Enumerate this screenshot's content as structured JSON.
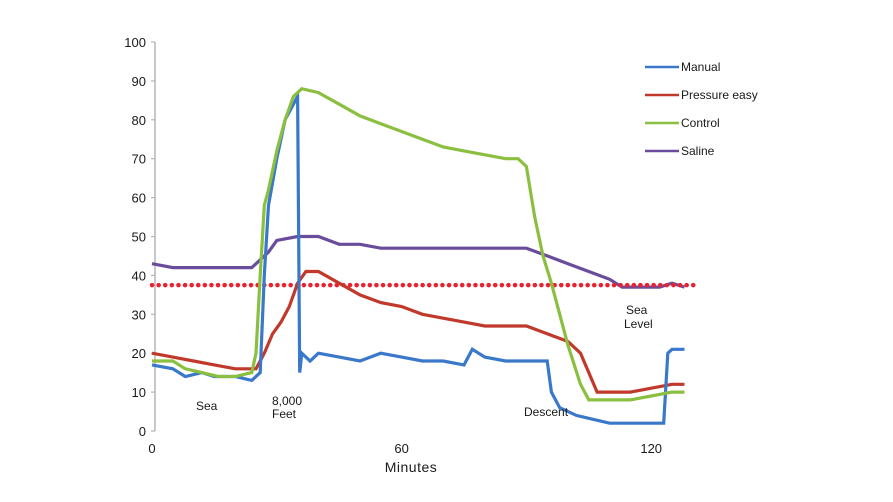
{
  "chart_data": {
    "type": "line",
    "title": "",
    "xlabel": "Minutes",
    "ylabel": "",
    "xlim": [
      0,
      130
    ],
    "ylim": [
      0,
      100
    ],
    "x_ticks": [
      0,
      60,
      120
    ],
    "y_ticks": [
      0,
      10,
      20,
      30,
      40,
      50,
      60,
      70,
      80,
      90,
      100
    ],
    "grid": false,
    "legend_position": "top-right",
    "series": [
      {
        "name": "Manual",
        "color": "#3a78c9",
        "points": [
          [
            0,
            17
          ],
          [
            5,
            16
          ],
          [
            8,
            14
          ],
          [
            12,
            15
          ],
          [
            15,
            14
          ],
          [
            20,
            14
          ],
          [
            24,
            13
          ],
          [
            26,
            15
          ],
          [
            27,
            40
          ],
          [
            28,
            58
          ],
          [
            30,
            70
          ],
          [
            32,
            80
          ],
          [
            34,
            84
          ],
          [
            35,
            86
          ],
          [
            35.5,
            15
          ],
          [
            36,
            20
          ],
          [
            38,
            18
          ],
          [
            40,
            20
          ],
          [
            45,
            19
          ],
          [
            50,
            18
          ],
          [
            55,
            20
          ],
          [
            60,
            19
          ],
          [
            65,
            18
          ],
          [
            70,
            18
          ],
          [
            75,
            17
          ],
          [
            77,
            21
          ],
          [
            80,
            19
          ],
          [
            85,
            18
          ],
          [
            90,
            18
          ],
          [
            95,
            18
          ],
          [
            96,
            10
          ],
          [
            98,
            6
          ],
          [
            102,
            4
          ],
          [
            106,
            3
          ],
          [
            110,
            2
          ],
          [
            115,
            2
          ],
          [
            120,
            2
          ],
          [
            123,
            2
          ],
          [
            124,
            20
          ],
          [
            125,
            21
          ],
          [
            128,
            21
          ]
        ]
      },
      {
        "name": "Pressure easy",
        "color": "#c0392b",
        "points": [
          [
            0,
            20
          ],
          [
            5,
            19
          ],
          [
            10,
            18
          ],
          [
            15,
            17
          ],
          [
            20,
            16
          ],
          [
            25,
            16
          ],
          [
            27,
            20
          ],
          [
            29,
            25
          ],
          [
            31,
            28
          ],
          [
            33,
            32
          ],
          [
            35,
            38
          ],
          [
            37,
            41
          ],
          [
            40,
            41
          ],
          [
            45,
            38
          ],
          [
            50,
            35
          ],
          [
            55,
            33
          ],
          [
            60,
            32
          ],
          [
            65,
            30
          ],
          [
            70,
            29
          ],
          [
            75,
            28
          ],
          [
            80,
            27
          ],
          [
            85,
            27
          ],
          [
            90,
            27
          ],
          [
            95,
            25
          ],
          [
            100,
            23
          ],
          [
            103,
            20
          ],
          [
            105,
            15
          ],
          [
            107,
            10
          ],
          [
            110,
            10
          ],
          [
            115,
            10
          ],
          [
            120,
            11
          ],
          [
            125,
            12
          ],
          [
            128,
            12
          ]
        ]
      },
      {
        "name": "Control",
        "color": "#8bbf3f",
        "points": [
          [
            0,
            18
          ],
          [
            5,
            18
          ],
          [
            8,
            16
          ],
          [
            12,
            15
          ],
          [
            16,
            14
          ],
          [
            20,
            14
          ],
          [
            24,
            15
          ],
          [
            25,
            20
          ],
          [
            26,
            40
          ],
          [
            27,
            58
          ],
          [
            28,
            62
          ],
          [
            30,
            72
          ],
          [
            32,
            80
          ],
          [
            34,
            86
          ],
          [
            36,
            88
          ],
          [
            40,
            87
          ],
          [
            45,
            84
          ],
          [
            50,
            81
          ],
          [
            55,
            79
          ],
          [
            60,
            77
          ],
          [
            65,
            75
          ],
          [
            70,
            73
          ],
          [
            75,
            72
          ],
          [
            80,
            71
          ],
          [
            85,
            70
          ],
          [
            88,
            70
          ],
          [
            90,
            68
          ],
          [
            92,
            55
          ],
          [
            94,
            45
          ],
          [
            96,
            38
          ],
          [
            98,
            30
          ],
          [
            100,
            22
          ],
          [
            103,
            12
          ],
          [
            105,
            8
          ],
          [
            110,
            8
          ],
          [
            115,
            8
          ],
          [
            120,
            9
          ],
          [
            125,
            10
          ],
          [
            128,
            10
          ]
        ]
      },
      {
        "name": "Saline",
        "color": "#6a4c9c",
        "points": [
          [
            0,
            43
          ],
          [
            5,
            42
          ],
          [
            10,
            42
          ],
          [
            15,
            42
          ],
          [
            20,
            42
          ],
          [
            24,
            42
          ],
          [
            26,
            44
          ],
          [
            28,
            46
          ],
          [
            30,
            49
          ],
          [
            35,
            50
          ],
          [
            40,
            50
          ],
          [
            45,
            48
          ],
          [
            50,
            48
          ],
          [
            55,
            47
          ],
          [
            60,
            47
          ],
          [
            65,
            47
          ],
          [
            70,
            47
          ],
          [
            75,
            47
          ],
          [
            80,
            47
          ],
          [
            85,
            47
          ],
          [
            90,
            47
          ],
          [
            95,
            45
          ],
          [
            100,
            43
          ],
          [
            105,
            41
          ],
          [
            110,
            39
          ],
          [
            113,
            37
          ],
          [
            118,
            37
          ],
          [
            122,
            37
          ],
          [
            125,
            38
          ],
          [
            128,
            37
          ]
        ]
      },
      {
        "name": "Threshold (dotted)",
        "color": "#e8232f",
        "style": "dotted",
        "points": [
          [
            0,
            37.5
          ],
          [
            130,
            37.5
          ]
        ]
      }
    ],
    "annotations": [
      {
        "text": "Sea",
        "x": 12,
        "y": 5
      },
      {
        "text": "8,000 Feet",
        "x": 30,
        "y": 5
      },
      {
        "text": "Descent",
        "x": 92,
        "y": 4
      },
      {
        "text": "Sea Level",
        "x": 114,
        "y": 28
      }
    ]
  },
  "legend": {
    "items": [
      {
        "label": "Manual",
        "color": "#3a78c9"
      },
      {
        "label": "Pressure easy",
        "color": "#c0392b"
      },
      {
        "label": "Control",
        "color": "#8bbf3f"
      },
      {
        "label": "Saline",
        "color": "#6a4c9c"
      }
    ]
  },
  "axes": {
    "x_title": "Minutes",
    "x_tick_labels": [
      "0",
      "60",
      "120"
    ],
    "y_tick_labels": [
      "0",
      "10",
      "20",
      "30",
      "40",
      "50",
      "60",
      "70",
      "80",
      "90",
      "100"
    ]
  },
  "annotations": {
    "sea": "Sea",
    "feet_line1": "8,000",
    "feet_line2": "Feet",
    "descent": "Descent",
    "sea_level_line1": "Sea",
    "sea_level_line2": "Level"
  }
}
